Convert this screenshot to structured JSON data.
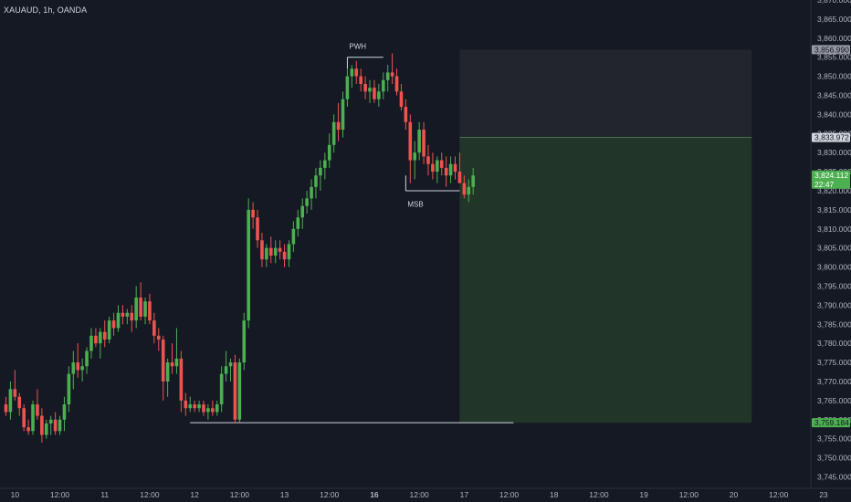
{
  "legend": {
    "symbol": "XAUAUD, 1h, OANDA"
  },
  "colors": {
    "background": "#151924",
    "up": "#4caf50",
    "down": "#ef5350",
    "axis_text": "#b2b5be",
    "stop_zone": "#22252e",
    "target_zone": "#213628",
    "annotation": "#d1d4dc"
  },
  "chart_data": {
    "type": "candlestick",
    "ylim": [
      3742,
      3870
    ],
    "y_ticks": [
      3745,
      3750,
      3755,
      3760,
      3765,
      3770,
      3775,
      3780,
      3785,
      3790,
      3795,
      3800,
      3805,
      3810,
      3815,
      3820,
      3825,
      3830,
      3835,
      3840,
      3845,
      3850,
      3855,
      3860,
      3865,
      3870
    ],
    "y_tick_labels": [
      "3,745.000",
      "3,750.000",
      "3,755.000",
      "3,760.000",
      "3,765.000",
      "3,770.000",
      "3,775.000",
      "3,780.000",
      "3,785.000",
      "3,790.000",
      "3,795.000",
      "3,800.000",
      "3,805.000",
      "3,810.000",
      "3,815.000",
      "3,820.000",
      "3,825.000",
      "3,830.000",
      "3,835.000",
      "3,840.000",
      "3,845.000",
      "3,850.000",
      "3,855.000",
      "3,860.000",
      "3,865.000",
      "3,870.000"
    ],
    "x_ticks": [
      {
        "i": 2,
        "label": "10",
        "bold": false
      },
      {
        "i": 12,
        "label": "12:00",
        "bold": false
      },
      {
        "i": 22,
        "label": "11",
        "bold": false
      },
      {
        "i": 32,
        "label": "12:00",
        "bold": false
      },
      {
        "i": 42,
        "label": "12",
        "bold": false
      },
      {
        "i": 52,
        "label": "12:00",
        "bold": false
      },
      {
        "i": 62,
        "label": "13",
        "bold": false
      },
      {
        "i": 72,
        "label": "12:00",
        "bold": false
      },
      {
        "i": 82,
        "label": "16",
        "bold": true
      },
      {
        "i": 92,
        "label": "12:00",
        "bold": false
      },
      {
        "i": 102,
        "label": "17",
        "bold": false
      },
      {
        "i": 112,
        "label": "12:00",
        "bold": false
      },
      {
        "i": 122,
        "label": "18",
        "bold": false
      },
      {
        "i": 132,
        "label": "12:00",
        "bold": false
      },
      {
        "i": 142,
        "label": "19",
        "bold": false
      },
      {
        "i": 152,
        "label": "12:00",
        "bold": false
      },
      {
        "i": 162,
        "label": "20",
        "bold": false
      },
      {
        "i": 172,
        "label": "12:00",
        "bold": false
      },
      {
        "i": 182,
        "label": "23",
        "bold": false
      }
    ],
    "candles": [
      [
        3764,
        3766,
        3761,
        3762
      ],
      [
        3762,
        3770,
        3760,
        3768
      ],
      [
        3768,
        3773,
        3765,
        3766
      ],
      [
        3766,
        3767,
        3761,
        3763
      ],
      [
        3763,
        3764,
        3757,
        3758
      ],
      [
        3758,
        3760,
        3756,
        3757
      ],
      [
        3757,
        3765,
        3756,
        3764
      ],
      [
        3764,
        3768,
        3760,
        3761
      ],
      [
        3761,
        3763,
        3754,
        3756
      ],
      [
        3756,
        3760,
        3755,
        3759
      ],
      [
        3759,
        3761,
        3756,
        3760
      ],
      [
        3760,
        3762,
        3756,
        3757
      ],
      [
        3757,
        3761,
        3756,
        3760
      ],
      [
        3760,
        3766,
        3757,
        3764
      ],
      [
        3764,
        3774,
        3762,
        3772
      ],
      [
        3772,
        3778,
        3768,
        3775
      ],
      [
        3775,
        3780,
        3771,
        3773
      ],
      [
        3773,
        3776,
        3770,
        3774
      ],
      [
        3774,
        3779,
        3772,
        3778
      ],
      [
        3778,
        3784,
        3776,
        3782
      ],
      [
        3782,
        3784,
        3779,
        3780
      ],
      [
        3780,
        3784,
        3776,
        3783
      ],
      [
        3783,
        3786,
        3779,
        3781
      ],
      [
        3781,
        3787,
        3780,
        3786
      ],
      [
        3786,
        3788,
        3782,
        3784
      ],
      [
        3784,
        3790,
        3783,
        3788
      ],
      [
        3788,
        3790,
        3785,
        3787
      ],
      [
        3787,
        3789,
        3785,
        3788
      ],
      [
        3788,
        3790,
        3783,
        3786
      ],
      [
        3786,
        3795,
        3784,
        3792
      ],
      [
        3792,
        3796,
        3786,
        3787
      ],
      [
        3787,
        3792,
        3785,
        3791
      ],
      [
        3791,
        3793,
        3785,
        3786
      ],
      [
        3786,
        3788,
        3780,
        3782
      ],
      [
        3782,
        3784,
        3778,
        3781
      ],
      [
        3781,
        3782,
        3765,
        3770
      ],
      [
        3770,
        3776,
        3766,
        3775
      ],
      [
        3775,
        3780,
        3772,
        3774
      ],
      [
        3774,
        3784,
        3772,
        3776
      ],
      [
        3776,
        3778,
        3762,
        3765
      ],
      [
        3765,
        3767,
        3761,
        3763
      ],
      [
        3763,
        3766,
        3762,
        3764
      ],
      [
        3764,
        3765,
        3762,
        3763
      ],
      [
        3763,
        3765,
        3762,
        3764
      ],
      [
        3764,
        3765,
        3761,
        3762
      ],
      [
        3762,
        3764,
        3760,
        3763
      ],
      [
        3763,
        3765,
        3761,
        3762
      ],
      [
        3762,
        3765,
        3761,
        3764
      ],
      [
        3764,
        3774,
        3762,
        3772
      ],
      [
        3772,
        3778,
        3770,
        3774
      ],
      [
        3774,
        3776,
        3770,
        3775
      ],
      [
        3775,
        3777,
        3759,
        3760
      ],
      [
        3760,
        3776,
        3759,
        3775
      ],
      [
        3775,
        3788,
        3773,
        3786
      ],
      [
        3786,
        3818,
        3784,
        3815
      ],
      [
        3815,
        3817,
        3810,
        3813
      ],
      [
        3813,
        3815,
        3805,
        3807
      ],
      [
        3807,
        3809,
        3800,
        3802
      ],
      [
        3802,
        3806,
        3800,
        3805
      ],
      [
        3805,
        3808,
        3801,
        3803
      ],
      [
        3803,
        3807,
        3801,
        3805
      ],
      [
        3805,
        3807,
        3802,
        3804
      ],
      [
        3804,
        3806,
        3800,
        3802
      ],
      [
        3802,
        3807,
        3800,
        3806
      ],
      [
        3806,
        3812,
        3804,
        3810
      ],
      [
        3810,
        3815,
        3808,
        3813
      ],
      [
        3813,
        3818,
        3810,
        3816
      ],
      [
        3816,
        3820,
        3814,
        3818
      ],
      [
        3818,
        3823,
        3815,
        3821
      ],
      [
        3821,
        3826,
        3818,
        3824
      ],
      [
        3824,
        3828,
        3820,
        3826
      ],
      [
        3826,
        3830,
        3823,
        3828
      ],
      [
        3828,
        3835,
        3826,
        3832
      ],
      [
        3832,
        3840,
        3830,
        3838
      ],
      [
        3838,
        3843,
        3833,
        3836
      ],
      [
        3836,
        3846,
        3834,
        3844
      ],
      [
        3844,
        3852,
        3842,
        3850
      ],
      [
        3850,
        3853,
        3847,
        3852
      ],
      [
        3852,
        3854,
        3848,
        3850
      ],
      [
        3850,
        3852,
        3846,
        3848
      ],
      [
        3848,
        3850,
        3844,
        3846
      ],
      [
        3846,
        3849,
        3843,
        3847
      ],
      [
        3847,
        3849,
        3843,
        3844
      ],
      [
        3844,
        3848,
        3842,
        3846
      ],
      [
        3846,
        3851,
        3844,
        3849
      ],
      [
        3849,
        3853,
        3846,
        3851
      ],
      [
        3851,
        3856,
        3848,
        3850
      ],
      [
        3850,
        3852,
        3845,
        3846
      ],
      [
        3846,
        3848,
        3841,
        3842
      ],
      [
        3842,
        3844,
        3836,
        3838
      ],
      [
        3838,
        3840,
        3822,
        3828
      ],
      [
        3828,
        3833,
        3823,
        3830
      ],
      [
        3830,
        3838,
        3828,
        3836
      ],
      [
        3836,
        3838,
        3827,
        3829
      ],
      [
        3829,
        3832,
        3824,
        3827
      ],
      [
        3827,
        3830,
        3823,
        3825
      ],
      [
        3825,
        3829,
        3822,
        3828
      ],
      [
        3828,
        3830,
        3824,
        3826
      ],
      [
        3826,
        3829,
        3821,
        3824
      ],
      [
        3824,
        3829,
        3822,
        3827
      ],
      [
        3827,
        3829,
        3823,
        3825
      ],
      [
        3825,
        3830,
        3823,
        3822
      ],
      [
        3822,
        3824,
        3818,
        3819
      ],
      [
        3819,
        3823,
        3817,
        3821
      ],
      [
        3821,
        3826,
        3819,
        3824
      ]
    ],
    "candles_note": "",
    "target_zone": {
      "from_i": 101,
      "to_i": 166,
      "y_top": 3833.972,
      "y_bottom": 3759.184
    },
    "stop_zone": {
      "from_i": 101,
      "to_i": 166,
      "y_top": 3856.99,
      "y_bottom": 3833.972
    },
    "horizontal_lines": [
      {
        "name": "low-line",
        "from_i": 41,
        "to_i": 113,
        "y": 3759.184
      },
      {
        "name": "pwh-line",
        "from_i": 76,
        "to_i": 84,
        "y": 3855
      },
      {
        "name": "msb-line",
        "from_i": 89,
        "to_i": 101,
        "y": 3820
      }
    ],
    "annotations": [
      {
        "name": "pwh-label",
        "text": "PWH",
        "i": 76,
        "y": 3856.5
      },
      {
        "name": "msb-label",
        "text": "MSB",
        "i": 89,
        "y": 3818
      }
    ],
    "price_tags": [
      {
        "name": "tag-stop",
        "value": 3856.99,
        "label": "3,856.990",
        "bg": "#9598a1",
        "fg": "#131722"
      },
      {
        "name": "tag-entry",
        "value": 3833.972,
        "label": "3,833.972",
        "bg": "#d1d4dc",
        "fg": "#131722"
      },
      {
        "name": "tag-current",
        "value": 3824.112,
        "label": "3,824.112",
        "sub": "22:47",
        "bg": "#4caf50",
        "fg": "#ffffff"
      },
      {
        "name": "tag-target",
        "value": 3759.184,
        "label": "3,759.184",
        "bg": "#4caf50",
        "fg": "#131722"
      }
    ]
  }
}
